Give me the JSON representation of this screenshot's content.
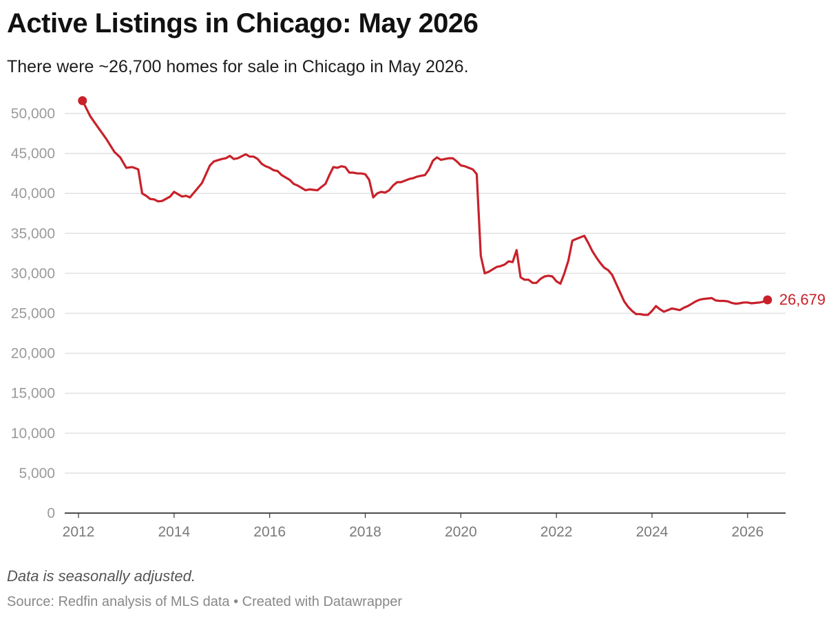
{
  "header": {
    "title": "Active Listings in Chicago: May 2026",
    "subtitle": "There were ~26,700 homes for sale in Chicago in May 2026."
  },
  "footer": {
    "note": "Data is seasonally adjusted.",
    "source": "Source: Redfin analysis of MLS data",
    "separator": " • ",
    "credit": "Created with Datawrapper"
  },
  "colors": {
    "line": "#c8212a",
    "grid": "#e1e1e1",
    "axis": "#333333"
  },
  "chart_data": {
    "type": "line",
    "title": "Active Listings in Chicago: May 2026",
    "subtitle": "There were ~26,700 homes for sale in Chicago in May 2026.",
    "xlabel": "",
    "ylabel": "",
    "xlim": [
      2012,
      2026.5
    ],
    "ylim": [
      0,
      50000
    ],
    "grid": true,
    "legend": "none",
    "y_ticks": [
      0,
      5000,
      10000,
      15000,
      20000,
      25000,
      30000,
      35000,
      40000,
      45000,
      50000
    ],
    "y_tick_labels": [
      "0",
      "5,000",
      "10,000",
      "15,000",
      "20,000",
      "25,000",
      "30,000",
      "35,000",
      "40,000",
      "45,000",
      "50,000"
    ],
    "x_ticks": [
      2012,
      2014,
      2016,
      2018,
      2020,
      2022,
      2024,
      2026
    ],
    "x_tick_labels": [
      "2012",
      "2014",
      "2016",
      "2018",
      "2020",
      "2022",
      "2024",
      "2026"
    ],
    "end_label": "26,679",
    "series": [
      {
        "color": "#c8212a",
        "points": [
          [
            2012.083,
            51600
          ],
          [
            2012.25,
            49600
          ],
          [
            2012.417,
            48200
          ],
          [
            2012.583,
            46800
          ],
          [
            2012.75,
            45200
          ],
          [
            2012.875,
            44500
          ],
          [
            2013.0,
            43200
          ],
          [
            2013.125,
            43300
          ],
          [
            2013.25,
            43000
          ],
          [
            2013.333,
            40000
          ],
          [
            2013.417,
            39700
          ],
          [
            2013.5,
            39300
          ],
          [
            2013.583,
            39250
          ],
          [
            2013.667,
            39000
          ],
          [
            2013.75,
            39050
          ],
          [
            2013.917,
            39600
          ],
          [
            2014.0,
            40200
          ],
          [
            2014.083,
            39900
          ],
          [
            2014.167,
            39600
          ],
          [
            2014.25,
            39700
          ],
          [
            2014.333,
            39500
          ],
          [
            2014.5,
            40700
          ],
          [
            2014.583,
            41300
          ],
          [
            2014.667,
            42400
          ],
          [
            2014.75,
            43500
          ],
          [
            2014.833,
            44000
          ],
          [
            2015.0,
            44300
          ],
          [
            2015.083,
            44400
          ],
          [
            2015.167,
            44700
          ],
          [
            2015.25,
            44300
          ],
          [
            2015.333,
            44400
          ],
          [
            2015.5,
            44900
          ],
          [
            2015.583,
            44600
          ],
          [
            2015.667,
            44600
          ],
          [
            2015.75,
            44300
          ],
          [
            2015.833,
            43700
          ],
          [
            2015.917,
            43400
          ],
          [
            2016.0,
            43200
          ],
          [
            2016.083,
            42900
          ],
          [
            2016.167,
            42800
          ],
          [
            2016.25,
            42300
          ],
          [
            2016.333,
            42000
          ],
          [
            2016.417,
            41700
          ],
          [
            2016.5,
            41200
          ],
          [
            2016.583,
            41000
          ],
          [
            2016.667,
            40700
          ],
          [
            2016.75,
            40400
          ],
          [
            2016.833,
            40500
          ],
          [
            2017.0,
            40400
          ],
          [
            2017.083,
            40800
          ],
          [
            2017.167,
            41200
          ],
          [
            2017.25,
            42300
          ],
          [
            2017.333,
            43300
          ],
          [
            2017.417,
            43200
          ],
          [
            2017.5,
            43400
          ],
          [
            2017.583,
            43300
          ],
          [
            2017.667,
            42600
          ],
          [
            2017.75,
            42600
          ],
          [
            2017.833,
            42500
          ],
          [
            2017.917,
            42500
          ],
          [
            2018.0,
            42400
          ],
          [
            2018.083,
            41700
          ],
          [
            2018.167,
            39500
          ],
          [
            2018.25,
            40000
          ],
          [
            2018.333,
            40200
          ],
          [
            2018.417,
            40100
          ],
          [
            2018.5,
            40400
          ],
          [
            2018.583,
            41000
          ],
          [
            2018.667,
            41400
          ],
          [
            2018.75,
            41400
          ],
          [
            2018.833,
            41600
          ],
          [
            2018.917,
            41800
          ],
          [
            2019.0,
            41900
          ],
          [
            2019.083,
            42100
          ],
          [
            2019.167,
            42200
          ],
          [
            2019.25,
            42300
          ],
          [
            2019.333,
            43000
          ],
          [
            2019.417,
            44100
          ],
          [
            2019.5,
            44500
          ],
          [
            2019.583,
            44200
          ],
          [
            2019.667,
            44300
          ],
          [
            2019.75,
            44400
          ],
          [
            2019.833,
            44400
          ],
          [
            2019.917,
            44000
          ],
          [
            2020.0,
            43500
          ],
          [
            2020.083,
            43400
          ],
          [
            2020.167,
            43200
          ],
          [
            2020.25,
            43000
          ],
          [
            2020.333,
            42400
          ],
          [
            2020.417,
            32200
          ],
          [
            2020.5,
            30000
          ],
          [
            2020.583,
            30200
          ],
          [
            2020.667,
            30500
          ],
          [
            2020.75,
            30800
          ],
          [
            2020.833,
            30900
          ],
          [
            2020.917,
            31100
          ],
          [
            2021.0,
            31500
          ],
          [
            2021.083,
            31400
          ],
          [
            2021.167,
            32900
          ],
          [
            2021.25,
            29500
          ],
          [
            2021.333,
            29200
          ],
          [
            2021.417,
            29200
          ],
          [
            2021.5,
            28800
          ],
          [
            2021.583,
            28800
          ],
          [
            2021.667,
            29300
          ],
          [
            2021.75,
            29600
          ],
          [
            2021.833,
            29700
          ],
          [
            2021.917,
            29600
          ],
          [
            2022.0,
            29000
          ],
          [
            2022.083,
            28700
          ],
          [
            2022.167,
            30000
          ],
          [
            2022.25,
            31600
          ],
          [
            2022.333,
            34100
          ],
          [
            2022.417,
            34300
          ],
          [
            2022.5,
            34500
          ],
          [
            2022.583,
            34700
          ],
          [
            2022.667,
            33800
          ],
          [
            2022.75,
            32800
          ],
          [
            2022.833,
            32000
          ],
          [
            2022.917,
            31300
          ],
          [
            2023.0,
            30700
          ],
          [
            2023.083,
            30400
          ],
          [
            2023.167,
            29800
          ],
          [
            2023.25,
            28700
          ],
          [
            2023.333,
            27600
          ],
          [
            2023.417,
            26500
          ],
          [
            2023.5,
            25800
          ],
          [
            2023.583,
            25300
          ],
          [
            2023.667,
            24900
          ],
          [
            2023.75,
            24900
          ],
          [
            2023.833,
            24800
          ],
          [
            2023.917,
            24800
          ],
          [
            2024.0,
            25300
          ],
          [
            2024.083,
            25900
          ],
          [
            2024.167,
            25500
          ],
          [
            2024.25,
            25200
          ],
          [
            2024.333,
            25400
          ],
          [
            2024.417,
            25600
          ],
          [
            2024.5,
            25500
          ],
          [
            2024.583,
            25400
          ],
          [
            2024.667,
            25700
          ],
          [
            2024.75,
            25900
          ],
          [
            2024.833,
            26200
          ],
          [
            2024.917,
            26500
          ],
          [
            2025.0,
            26700
          ],
          [
            2025.083,
            26800
          ],
          [
            2025.167,
            26850
          ],
          [
            2025.25,
            26900
          ],
          [
            2025.333,
            26600
          ],
          [
            2025.417,
            26550
          ],
          [
            2025.5,
            26550
          ],
          [
            2025.583,
            26500
          ],
          [
            2025.667,
            26300
          ],
          [
            2025.75,
            26200
          ],
          [
            2025.833,
            26250
          ],
          [
            2025.917,
            26350
          ],
          [
            2026.0,
            26350
          ],
          [
            2026.083,
            26250
          ],
          [
            2026.167,
            26300
          ],
          [
            2026.25,
            26350
          ],
          [
            2026.333,
            26450
          ],
          [
            2026.417,
            26679
          ]
        ]
      }
    ]
  }
}
